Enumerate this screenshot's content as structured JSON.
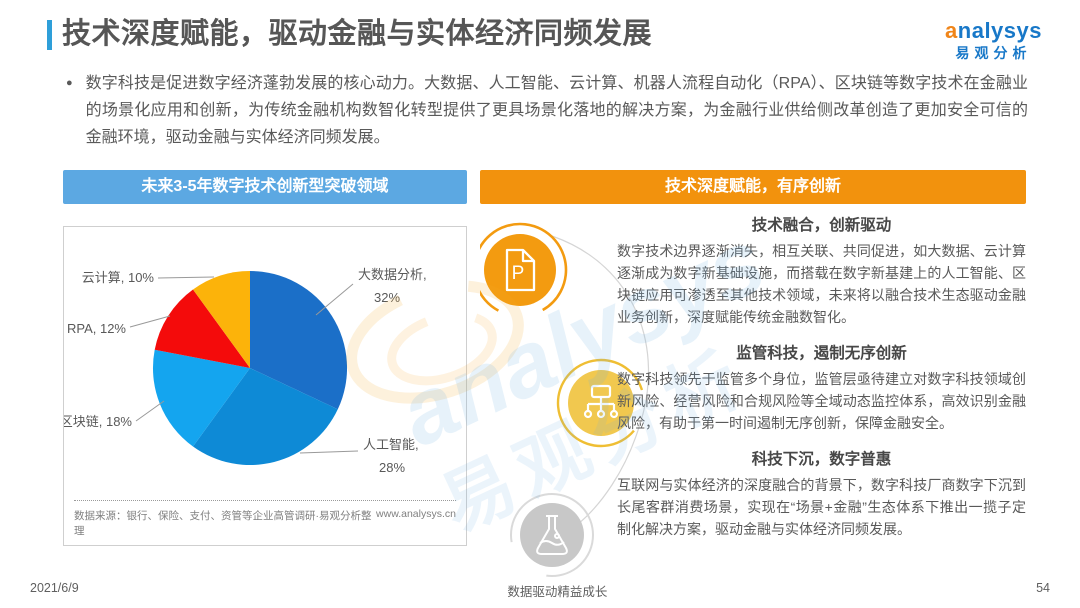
{
  "header": {
    "title": "技术深度赋能，驱动金融与实体经济同频发展",
    "logo": {
      "brand": "analysys",
      "brand_cn": "易观分析"
    }
  },
  "intro": {
    "bullet": "●",
    "text": "数字科技是促进数字经济蓬勃发展的核心动力。大数据、人工智能、云计算、机器人流程自动化（RPA）、区块链等数字技术在金融业的场景化应用和创新，为传统金融机构数智化转型提供了更具场景化落地的解决方案，为金融行业供给侧改革创造了更加安全可信的金融环境，驱动金融与实体经济同频发展。"
  },
  "left_panel": {
    "header": "未来3-5年数字技术创新型突破领域",
    "source": "数据来源：银行、保险、支付、资管等企业高管调研·易观分析整理",
    "website": "www.analysys.cn"
  },
  "chart_data": {
    "type": "pie",
    "title": "未来3-5年数字技术创新型突破领域",
    "categories": [
      "大数据分析",
      "人工智能",
      "区块链",
      "RPA",
      "云计算"
    ],
    "values": [
      32,
      28,
      18,
      12,
      10
    ],
    "unit": "%",
    "colors": [
      "#1B6FC8",
      "#0E8AD6",
      "#14A5EF",
      "#F40B0B",
      "#FCB30A"
    ],
    "start_angle": "12-oclock",
    "direction": "clockwise",
    "legend_position": "outside-labels-with-leader-lines"
  },
  "right_panel": {
    "header": "技术深度赋能，有序创新",
    "sections": [
      {
        "icon": "document-p-icon",
        "title": "技术融合，创新驱动",
        "body": "数字技术边界逐渐消失，相互关联、共同促进，如大数据、云计算逐渐成为数字新基础设施，而搭载在数字新基建上的人工智能、区块链应用可渗透至其他技术领域，未来将以融合技术生态驱动金融业务创新，深度赋能传统金融数智化。"
      },
      {
        "icon": "org-chart-icon",
        "title": "监管科技，遏制无序创新",
        "body": "数字科技领先于监管多个身位，监管层亟待建立对数字科技领域创新风险、经营风险和合规风险等全域动态监控体系，高效识别金融风险，有助于第一时间遏制无序创新，保障金融安全。"
      },
      {
        "icon": "flask-icon",
        "title": "科技下沉，数字普惠",
        "body": "互联网与实体经济的深度融合的背景下，数字科技厂商数字下沉到长尾客群消费场景，实现在“场景+金融”生态体系下推出一揽子定制化解决方案，驱动金融与实体经济同频发展。"
      }
    ]
  },
  "footer": {
    "date": "2021/6/9",
    "tagline": "数据驱动精益成长",
    "page": "54"
  },
  "watermark": {
    "text_en": "analysys",
    "text_cn": "易观分析"
  },
  "colors": {
    "accent_blue": "#2E9FD9",
    "panel_blue": "#5CA8E2",
    "panel_orange": "#F2920D",
    "logo_blue": "#1878C8",
    "logo_orange": "#F08519",
    "icon_orange": "#F39B10",
    "icon_gold": "#F1C84F",
    "icon_gray": "#C8C8C8"
  }
}
